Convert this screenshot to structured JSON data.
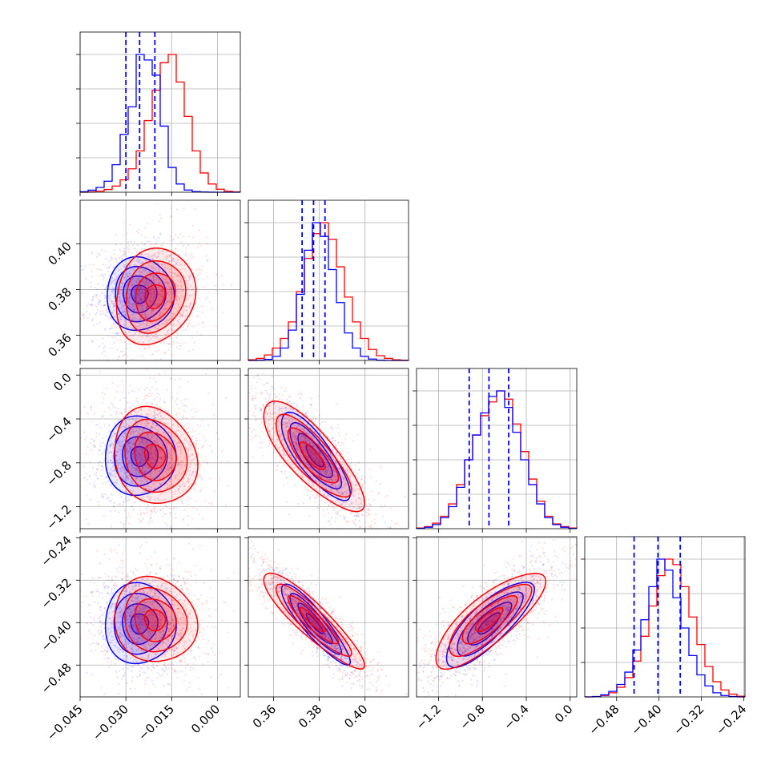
{
  "chart_data": {
    "type": "corner",
    "description_of_layout": "4x4 lower-triangular corner plot; diagonal = 1D histograms, off-diagonal = 2D scatter + density contours",
    "colors": {
      "series_a": "#0000ff",
      "series_b": "#ff0000",
      "grid": "#b0b0b0"
    },
    "grid": true,
    "parameters": [
      {
        "ticks": [
          -0.045,
          -0.03,
          -0.015,
          0.0
        ],
        "tick_labels": [
          "−0.045",
          "−0.030",
          "−0.015",
          "0.000"
        ],
        "range": [
          -0.045,
          0.0075
        ],
        "hist_a": [
          0.4,
          1.5,
          3.5,
          8,
          20,
          42,
          62,
          100,
          96,
          85,
          48,
          18,
          6,
          1.6,
          0.5,
          0.2,
          0.05,
          0,
          0,
          0
        ],
        "hist_b": [
          0,
          0.3,
          0.8,
          2,
          4.5,
          9,
          17,
          30,
          52,
          74,
          94,
          100,
          80,
          55,
          30,
          14,
          6,
          2.2,
          0.8,
          0.3
        ],
        "quantiles_a": [
          -0.03,
          -0.0255,
          -0.0205
        ]
      },
      {
        "ticks": [
          0.36,
          0.38,
          0.4
        ],
        "tick_labels": [
          "0.36",
          "0.38",
          "0.40"
        ],
        "range": [
          0.349,
          0.419
        ],
        "hist_a": [
          0,
          0.2,
          0.8,
          3,
          9,
          22,
          48,
          80,
          100,
          90,
          66,
          42,
          20,
          9,
          3,
          1,
          0.2,
          0,
          0,
          0
        ],
        "hist_b": [
          0.5,
          1.5,
          4,
          9,
          16,
          28,
          50,
          74,
          92,
          100,
          88,
          68,
          46,
          28,
          16,
          8,
          3.5,
          1.5,
          0.5,
          0.2
        ],
        "quantiles_a": [
          0.3725,
          0.3775,
          0.3825
        ]
      },
      {
        "ticks": [
          0.0,
          -0.4,
          -0.8,
          -1.2
        ],
        "tick_labels": [
          "0.0",
          "−0.4",
          "−0.8",
          "−1.2"
        ],
        "range": [
          -1.4,
          0.06
        ],
        "hist_a": [
          0.2,
          1,
          3,
          8,
          16,
          30,
          50,
          68,
          84,
          96,
          100,
          88,
          70,
          50,
          32,
          18,
          8,
          3,
          1,
          0.2
        ],
        "hist_b": [
          0.5,
          1.5,
          4,
          9,
          18,
          32,
          50,
          68,
          82,
          92,
          100,
          94,
          76,
          56,
          36,
          20,
          9,
          3.5,
          1.5,
          0.5
        ],
        "quantiles_a": [
          -0.92,
          -0.74,
          -0.56
        ]
      },
      {
        "ticks": [
          -0.24,
          -0.32,
          -0.4,
          -0.48
        ],
        "tick_labels": [
          "−0.24",
          "−0.32",
          "−0.40",
          "−0.48"
        ],
        "range": [
          -0.54,
          -0.238
        ],
        "hist_a": [
          0,
          0.3,
          1.5,
          4,
          9,
          18,
          34,
          56,
          80,
          100,
          92,
          72,
          50,
          30,
          16,
          8,
          3,
          1,
          0.3,
          0
        ],
        "hist_b": [
          0,
          0.2,
          1,
          3,
          7,
          14,
          26,
          44,
          66,
          88,
          100,
          96,
          80,
          58,
          38,
          22,
          11,
          5,
          2,
          0.5
        ],
        "quantiles_a": [
          -0.447,
          -0.402,
          -0.36
        ]
      }
    ],
    "pairs": [
      {
        "row": 1,
        "col": 0,
        "series_a": {
          "center": [
            -0.0255,
            0.378
          ],
          "sd": [
            0.0055,
            0.008
          ],
          "rho": 0.0
        },
        "series_b": {
          "center": [
            -0.0205,
            0.377
          ],
          "sd": [
            0.0065,
            0.0105
          ],
          "rho": 0.15
        }
      },
      {
        "row": 2,
        "col": 0,
        "series_a": {
          "center": [
            -0.0255,
            -0.74
          ],
          "sd": [
            0.0058,
            0.18
          ],
          "rho": 0.0
        },
        "series_b": {
          "center": [
            -0.0205,
            -0.74
          ],
          "sd": [
            0.0068,
            0.22
          ],
          "rho": -0.15
        }
      },
      {
        "row": 2,
        "col": 1,
        "series_a": {
          "center": [
            0.378,
            -0.74
          ],
          "sd": [
            0.0075,
            0.2
          ],
          "rho": -0.8
        },
        "series_b": {
          "center": [
            0.377,
            -0.74
          ],
          "sd": [
            0.011,
            0.25
          ],
          "rho": -0.8
        }
      },
      {
        "row": 3,
        "col": 0,
        "series_a": {
          "center": [
            -0.0255,
            -0.402
          ],
          "sd": [
            0.0058,
            0.038
          ],
          "rho": 0.0
        },
        "series_b": {
          "center": [
            -0.0205,
            -0.395
          ],
          "sd": [
            0.0068,
            0.04
          ],
          "rho": -0.1
        }
      },
      {
        "row": 3,
        "col": 1,
        "series_a": {
          "center": [
            0.378,
            -0.402
          ],
          "sd": [
            0.0075,
            0.038
          ],
          "rho": -0.9
        },
        "series_b": {
          "center": [
            0.377,
            -0.395
          ],
          "sd": [
            0.011,
            0.045
          ],
          "rho": -0.9
        }
      },
      {
        "row": 3,
        "col": 2,
        "series_a": {
          "center": [
            -0.74,
            -0.402
          ],
          "sd": [
            0.2,
            0.04
          ],
          "rho": 0.8
        },
        "series_b": {
          "center": [
            -0.74,
            -0.395
          ],
          "sd": [
            0.25,
            0.045
          ],
          "rho": 0.8
        }
      }
    ],
    "contour_levels_sigma": [
      0.5,
      1.0,
      1.5,
      2.0
    ]
  }
}
